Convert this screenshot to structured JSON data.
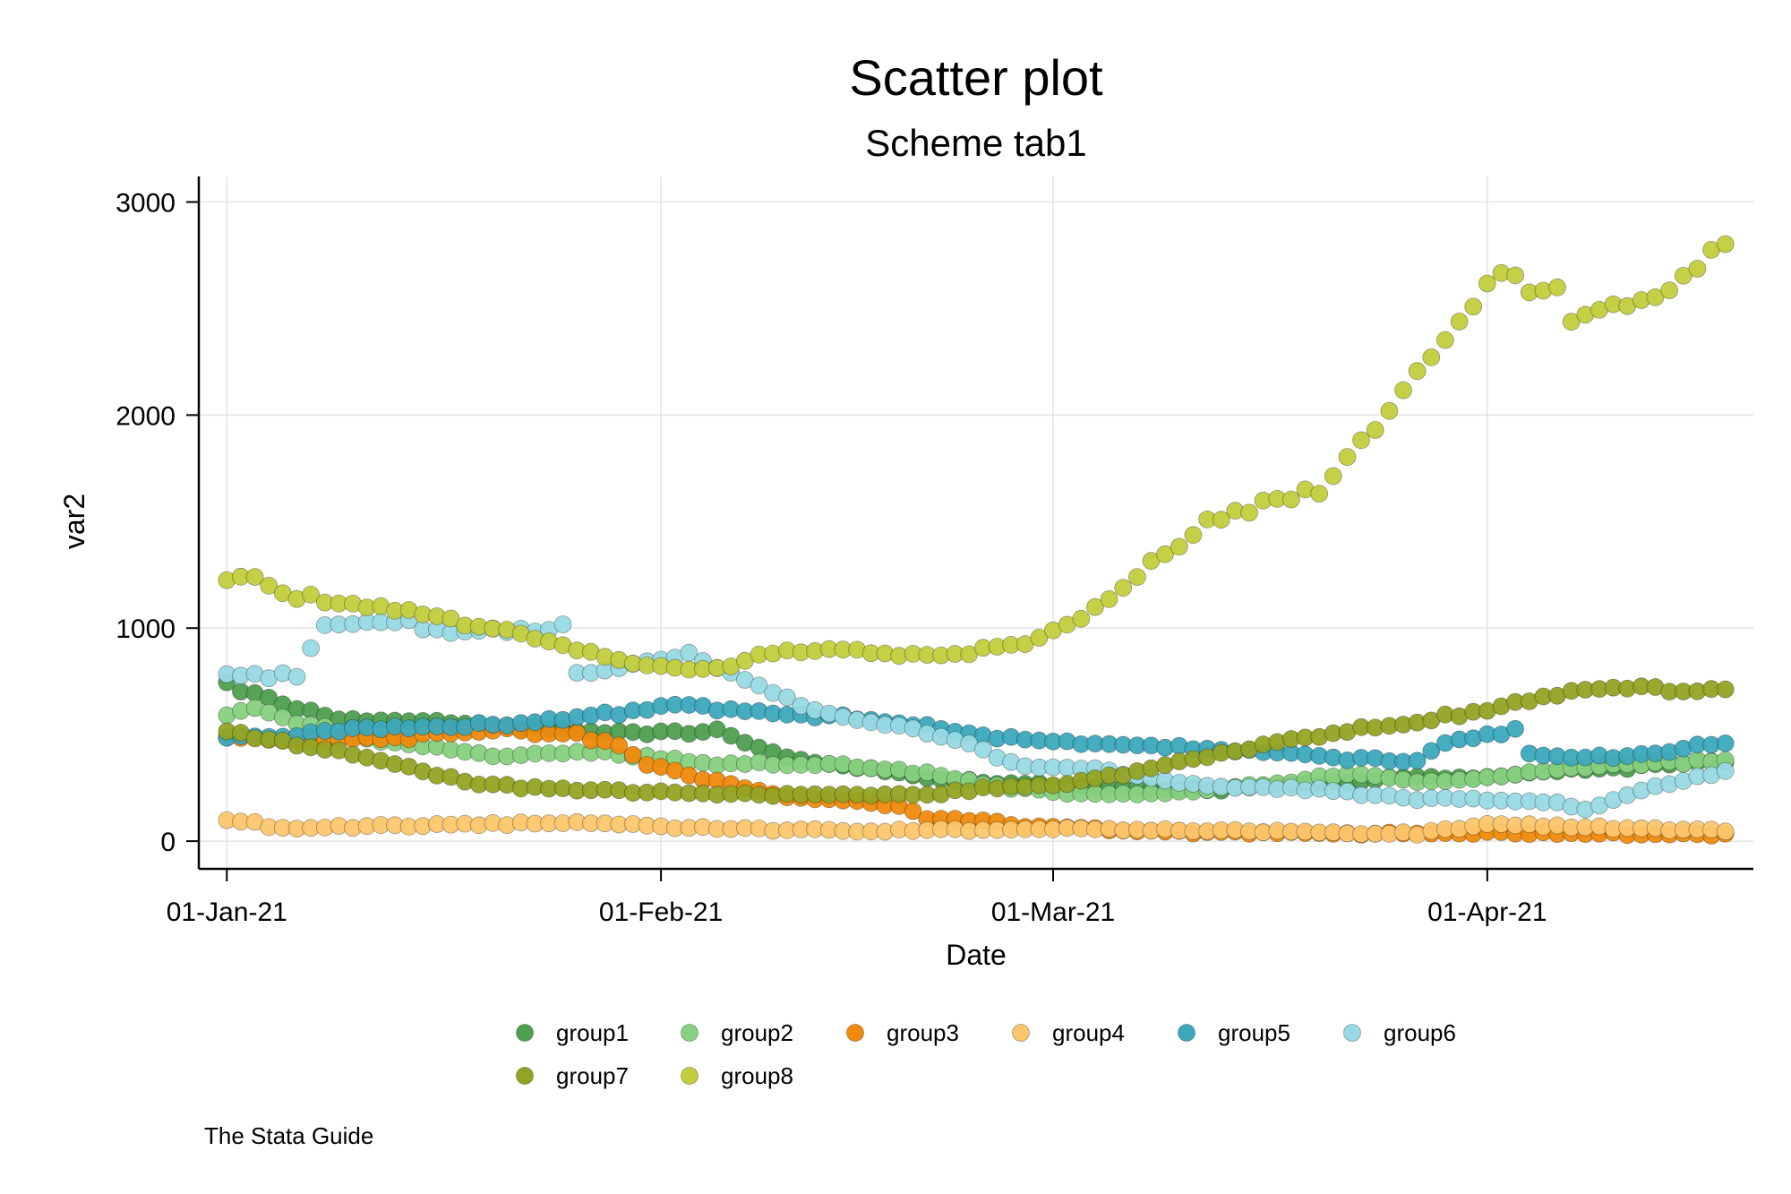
{
  "chart_data": {
    "type": "scatter",
    "title": "Scatter plot",
    "subtitle": "Scheme tab1",
    "xlabel": "Date",
    "ylabel": "var2",
    "note": "The Stata Guide",
    "x_unit": "days since 01-Jan-21",
    "x_range": [
      0,
      107
    ],
    "xlim": [
      -2,
      109
    ],
    "ylim": [
      -130,
      3120
    ],
    "x_ticks": [
      {
        "value": 0,
        "label": "01-Jan-21"
      },
      {
        "value": 31,
        "label": "01-Feb-21"
      },
      {
        "value": 59,
        "label": "01-Mar-21"
      },
      {
        "value": 90,
        "label": "01-Apr-21"
      }
    ],
    "y_ticks": [
      {
        "value": 0,
        "label": "0"
      },
      {
        "value": 1000,
        "label": "1000"
      },
      {
        "value": 2000,
        "label": "2000"
      },
      {
        "value": 3000,
        "label": "3000"
      }
    ],
    "grid": true,
    "legend_position": "bottom",
    "series": [
      {
        "name": "group1",
        "color": "#4e9f50",
        "anchors": [
          [
            0,
            760
          ],
          [
            1,
            690
          ],
          [
            2,
            700
          ],
          [
            3,
            670
          ],
          [
            5,
            620
          ],
          [
            8,
            580
          ],
          [
            15,
            560
          ],
          [
            25,
            520
          ],
          [
            30,
            510
          ],
          [
            35,
            520
          ],
          [
            37,
            460
          ],
          [
            40,
            390
          ],
          [
            50,
            300
          ],
          [
            55,
            270
          ],
          [
            60,
            260
          ],
          [
            70,
            240
          ],
          [
            80,
            280
          ],
          [
            85,
            300
          ],
          [
            90,
            300
          ],
          [
            95,
            330
          ],
          [
            107,
            370
          ]
        ]
      },
      {
        "name": "group2",
        "color": "#87d180",
        "anchors": [
          [
            0,
            600
          ],
          [
            2,
            630
          ],
          [
            5,
            560
          ],
          [
            10,
            480
          ],
          [
            15,
            440
          ],
          [
            20,
            400
          ],
          [
            25,
            420
          ],
          [
            30,
            400
          ],
          [
            35,
            360
          ],
          [
            40,
            360
          ],
          [
            45,
            350
          ],
          [
            50,
            320
          ],
          [
            55,
            260
          ],
          [
            60,
            230
          ],
          [
            65,
            220
          ],
          [
            70,
            240
          ],
          [
            75,
            270
          ],
          [
            80,
            320
          ],
          [
            85,
            280
          ],
          [
            90,
            300
          ],
          [
            95,
            340
          ],
          [
            100,
            360
          ],
          [
            107,
            380
          ]
        ]
      },
      {
        "name": "group3",
        "color": "#ef8a0c",
        "anchors": [
          [
            0,
            480
          ],
          [
            5,
            470
          ],
          [
            10,
            480
          ],
          [
            15,
            500
          ],
          [
            20,
            520
          ],
          [
            25,
            500
          ],
          [
            28,
            450
          ],
          [
            30,
            360
          ],
          [
            33,
            310
          ],
          [
            36,
            270
          ],
          [
            38,
            240
          ],
          [
            40,
            210
          ],
          [
            45,
            190
          ],
          [
            48,
            160
          ],
          [
            50,
            110
          ],
          [
            53,
            100
          ],
          [
            57,
            70
          ],
          [
            60,
            60
          ],
          [
            65,
            50
          ],
          [
            70,
            40
          ],
          [
            80,
            35
          ],
          [
            90,
            40
          ],
          [
            107,
            30
          ]
        ]
      },
      {
        "name": "group4",
        "color": "#fcc66d",
        "anchors": [
          [
            0,
            100
          ],
          [
            2,
            90
          ],
          [
            3,
            60
          ],
          [
            10,
            70
          ],
          [
            20,
            80
          ],
          [
            25,
            90
          ],
          [
            30,
            70
          ],
          [
            35,
            60
          ],
          [
            40,
            50
          ],
          [
            50,
            50
          ],
          [
            60,
            60
          ],
          [
            70,
            50
          ],
          [
            80,
            40
          ],
          [
            85,
            35
          ],
          [
            90,
            80
          ],
          [
            100,
            60
          ],
          [
            107,
            50
          ]
        ]
      },
      {
        "name": "group5",
        "color": "#3ca8bc",
        "anchors": [
          [
            0,
            480
          ],
          [
            5,
            500
          ],
          [
            10,
            530
          ],
          [
            20,
            550
          ],
          [
            25,
            580
          ],
          [
            30,
            620
          ],
          [
            33,
            650
          ],
          [
            35,
            620
          ],
          [
            40,
            600
          ],
          [
            45,
            580
          ],
          [
            48,
            550
          ],
          [
            52,
            520
          ],
          [
            55,
            490
          ],
          [
            60,
            460
          ],
          [
            65,
            450
          ],
          [
            70,
            440
          ],
          [
            75,
            420
          ],
          [
            80,
            390
          ],
          [
            85,
            370
          ],
          [
            87,
            470
          ],
          [
            90,
            500
          ],
          [
            92,
            520
          ],
          [
            93,
            410
          ],
          [
            95,
            400
          ],
          [
            100,
            400
          ],
          [
            107,
            460
          ]
        ]
      },
      {
        "name": "group6",
        "color": "#98d9e4",
        "anchors": [
          [
            0,
            780
          ],
          [
            5,
            780
          ],
          [
            7,
            1000
          ],
          [
            10,
            1030
          ],
          [
            13,
            1020
          ],
          [
            15,
            980
          ],
          [
            18,
            1000
          ],
          [
            20,
            980
          ],
          [
            24,
            1000
          ],
          [
            25,
            790
          ],
          [
            27,
            800
          ],
          [
            30,
            840
          ],
          [
            33,
            880
          ],
          [
            35,
            820
          ],
          [
            38,
            720
          ],
          [
            40,
            660
          ],
          [
            43,
            600
          ],
          [
            47,
            550
          ],
          [
            52,
            480
          ],
          [
            55,
            400
          ],
          [
            57,
            350
          ],
          [
            62,
            350
          ],
          [
            65,
            300
          ],
          [
            70,
            260
          ],
          [
            75,
            250
          ],
          [
            80,
            230
          ],
          [
            85,
            200
          ],
          [
            90,
            190
          ],
          [
            95,
            180
          ],
          [
            97,
            150
          ],
          [
            100,
            220
          ],
          [
            107,
            330
          ]
        ]
      },
      {
        "name": "group7",
        "color": "#94a323",
        "anchors": [
          [
            0,
            510
          ],
          [
            5,
            450
          ],
          [
            10,
            400
          ],
          [
            15,
            310
          ],
          [
            18,
            270
          ],
          [
            22,
            250
          ],
          [
            26,
            240
          ],
          [
            30,
            230
          ],
          [
            40,
            220
          ],
          [
            50,
            220
          ],
          [
            55,
            250
          ],
          [
            60,
            270
          ],
          [
            65,
            330
          ],
          [
            70,
            400
          ],
          [
            75,
            460
          ],
          [
            80,
            520
          ],
          [
            85,
            560
          ],
          [
            90,
            620
          ],
          [
            95,
            690
          ],
          [
            100,
            720
          ],
          [
            102,
            720
          ],
          [
            104,
            700
          ],
          [
            107,
            720
          ]
        ]
      },
      {
        "name": "group8",
        "color": "#c3ce3d",
        "anchors": [
          [
            0,
            1230
          ],
          [
            2,
            1230
          ],
          [
            5,
            1150
          ],
          [
            10,
            1110
          ],
          [
            15,
            1050
          ],
          [
            20,
            990
          ],
          [
            25,
            900
          ],
          [
            28,
            850
          ],
          [
            32,
            820
          ],
          [
            35,
            820
          ],
          [
            40,
            890
          ],
          [
            45,
            900
          ],
          [
            48,
            870
          ],
          [
            52,
            880
          ],
          [
            57,
            930
          ],
          [
            60,
            1000
          ],
          [
            63,
            1150
          ],
          [
            67,
            1350
          ],
          [
            70,
            1500
          ],
          [
            73,
            1550
          ],
          [
            75,
            1610
          ],
          [
            78,
            1650
          ],
          [
            80,
            1820
          ],
          [
            83,
            2020
          ],
          [
            85,
            2210
          ],
          [
            87,
            2380
          ],
          [
            89,
            2530
          ],
          [
            91,
            2640
          ],
          [
            93,
            2600
          ],
          [
            95,
            2610
          ],
          [
            96,
            2450
          ],
          [
            98,
            2500
          ],
          [
            100,
            2520
          ],
          [
            102,
            2520
          ],
          [
            104,
            2640
          ],
          [
            107,
            2780
          ]
        ]
      }
    ]
  }
}
